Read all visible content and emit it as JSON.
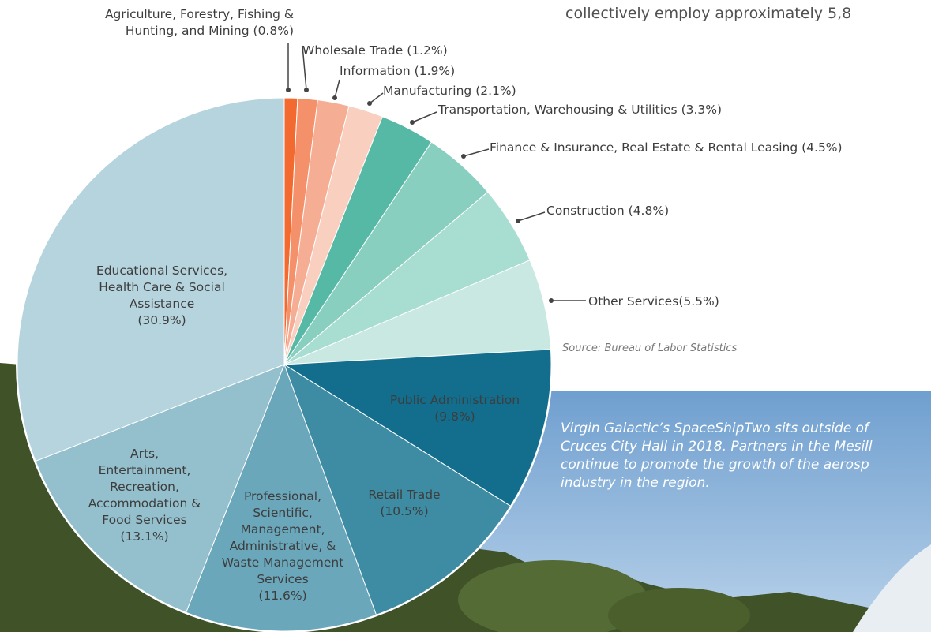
{
  "top_text": "collectively employ approximately 5,8",
  "chart_data": {
    "type": "pie",
    "categories": [
      "Agriculture, Forestry, Fishing & Hunting, and Mining",
      "Wholesale Trade",
      "Information",
      "Manufacturing",
      "Transportation, Warehousing & Utilities",
      "Finance & Insurance, Real Estate & Rental Leasing",
      "Construction",
      "Other Services",
      "Public Administration",
      "Retail Trade",
      "Professional, Scientific, Management, Administrative, & Waste Management Services",
      "Arts, Entertainment, Recreation, Accommodation & Food Services",
      "Educational Services, Health Care & Social Assistance"
    ],
    "values": [
      0.8,
      1.2,
      1.9,
      2.1,
      3.3,
      4.5,
      4.8,
      5.5,
      9.8,
      10.5,
      11.6,
      13.1,
      30.9
    ],
    "value_labels": [
      "(0.8%)",
      "(1.2%)",
      "(1.9%)",
      "(2.1%)",
      "(3.3%)",
      "(4.5%)",
      "(4.8%)",
      "(5.5%)",
      "(9.8%)",
      "(10.5%)",
      "(11.6%)",
      "(13.1%)",
      "(30.9%)"
    ],
    "colors": [
      "#f26a30",
      "#f4916a",
      "#f5ae94",
      "#f9cfc0",
      "#55b9a5",
      "#88cfbf",
      "#a8ddd2",
      "#c8e8e1",
      "#126e8c",
      "#3d8ca3",
      "#6aa7ba",
      "#94c0cd",
      "#b5d4dd"
    ]
  },
  "source": "Source: Bureau of Labor Statistics",
  "caption": {
    "lines": [
      "Virgin Galactic’s SpaceShipTwo sits outside of",
      "Cruces City Hall in 2018.  Partners in the Mesill",
      "continue to promote the growth of the aerosp",
      "industry in the region."
    ]
  }
}
